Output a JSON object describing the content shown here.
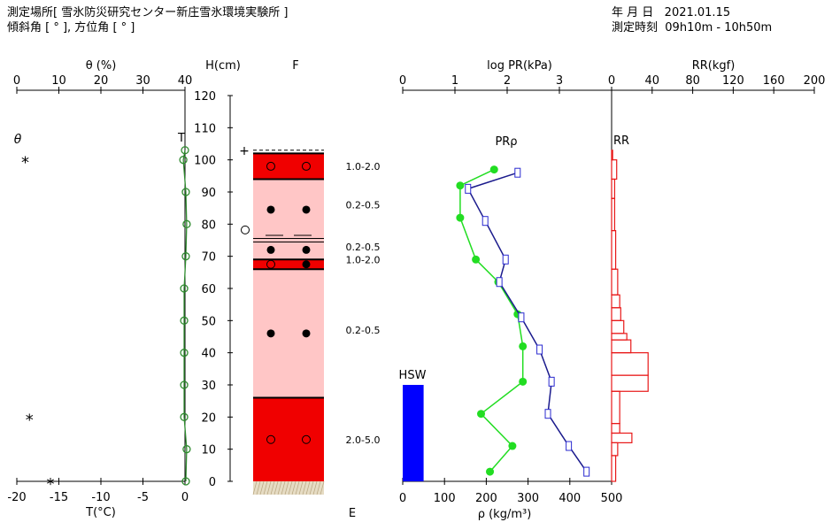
{
  "header": {
    "location_label": "測定場所",
    "location_value": "[ 雪氷防災研究センター新庄雪氷環境実験所 ]",
    "angle_line": "傾斜角 [ ° ], 方位角 [ ° ]",
    "date_label": "年 月 日",
    "date_value": "2021.01.15",
    "time_label": "測定時刻",
    "time_value": "09h10m - 10h50m"
  },
  "chart_data": [
    {
      "type": "line",
      "id": "inclination-temperature",
      "top_axis_label": "θ (%)",
      "top_ticks": [
        0,
        10,
        20,
        30,
        40
      ],
      "top_range": [
        0,
        40
      ],
      "bottom_axis_label": "T(°C)",
      "bottom_ticks": [
        -20,
        -15,
        -10,
        -5,
        0
      ],
      "bottom_range": [
        -20,
        0
      ],
      "theta_label": "θ",
      "theta_marker": "*",
      "theta_points": [
        {
          "h": 100,
          "value": 2.0
        },
        {
          "h": 20,
          "value": 3.0
        },
        {
          "h": 0,
          "value": 8.0
        }
      ],
      "temperature_label": "T",
      "temperature_color": "#2e8b2e",
      "temperature": [
        {
          "h": 103,
          "t": 0.0
        },
        {
          "h": 100,
          "t": -0.2
        },
        {
          "h": 90,
          "t": 0.1
        },
        {
          "h": 80,
          "t": 0.2
        },
        {
          "h": 70,
          "t": 0.1
        },
        {
          "h": 60,
          "t": -0.1
        },
        {
          "h": 50,
          "t": -0.1
        },
        {
          "h": 40,
          "t": -0.1
        },
        {
          "h": 30,
          "t": -0.1
        },
        {
          "h": 20,
          "t": -0.1
        },
        {
          "h": 10,
          "t": 0.2
        },
        {
          "h": 0,
          "t": 0.1
        }
      ]
    },
    {
      "type": "table",
      "id": "snow-profile",
      "height_axis_label": "H(cm)",
      "height_ticks": [
        0,
        10,
        20,
        30,
        40,
        50,
        60,
        70,
        80,
        90,
        100,
        110,
        120
      ],
      "height_range": [
        0,
        120
      ],
      "top_label": "F",
      "bottom_label": "E",
      "surface_marker": "+",
      "surface_height": 103,
      "open_circle_height": 76,
      "layers": [
        {
          "from": 94,
          "to": 102,
          "color": "#f00000",
          "symbol": "open-circle",
          "size": "1.0-2.0"
        },
        {
          "from": 75,
          "to": 94,
          "color": "#ffc6c6",
          "symbol": "filled-dot",
          "size": "0.2-0.5"
        },
        {
          "from": 69,
          "to": 75,
          "color": "#ffc6c6",
          "symbol": "filled-dot",
          "size": "0.2-0.5"
        },
        {
          "from": 66,
          "to": 69,
          "color": "#f00000",
          "symbol": "open-filled",
          "size": "1.0-2.0"
        },
        {
          "from": 26,
          "to": 66,
          "color": "#ffc6c6",
          "symbol": "filled-dot",
          "size": "0.2-0.5"
        },
        {
          "from": 0,
          "to": 26,
          "color": "#f00000",
          "symbol": "open-circle",
          "size": "2.0-5.0"
        }
      ],
      "size_labels": [
        {
          "h": 98,
          "text": "1.0-2.0"
        },
        {
          "h": 86,
          "text": "0.2-0.5"
        },
        {
          "h": 73,
          "text": "0.2-0.5"
        },
        {
          "h": 69,
          "text": "1.0-2.0"
        },
        {
          "h": 47,
          "text": "0.2-0.5"
        },
        {
          "h": 13,
          "text": "2.0-5.0"
        }
      ]
    },
    {
      "type": "line",
      "id": "pr-density",
      "top_axis_label": "log PR(kPa)",
      "top_ticks": [
        0,
        1,
        2,
        3
      ],
      "top_range": [
        0,
        4
      ],
      "bottom_axis_label": "ρ (kg/m³)",
      "bottom_ticks": [
        0,
        100,
        200,
        300,
        400,
        500
      ],
      "bottom_range": [
        0,
        500
      ],
      "curve_label": "PRρ",
      "hsw_label": "HSW",
      "hsw": {
        "from": 0,
        "to": 30,
        "rho_from": 0,
        "rho_to": 50,
        "color": "#0000ff"
      },
      "series": [
        {
          "name": "ρ",
          "color": "#22dd22",
          "points": [
            {
              "h": 97,
              "v": 1.75
            },
            {
              "h": 92,
              "v": 1.1
            },
            {
              "h": 82,
              "v": 1.1
            },
            {
              "h": 69,
              "v": 1.4
            },
            {
              "h": 62,
              "v": 1.83
            },
            {
              "h": 52,
              "v": 2.2
            },
            {
              "h": 42,
              "v": 2.3
            },
            {
              "h": 31,
              "v": 2.3
            },
            {
              "h": 21,
              "v": 1.5
            },
            {
              "h": 11,
              "v": 2.1
            },
            {
              "h": 3,
              "v": 1.67
            }
          ]
        },
        {
          "name": "PR",
          "color": "#1a1a8c",
          "points": [
            {
              "h": 96,
              "v": 2.2
            },
            {
              "h": 91,
              "v": 1.25
            },
            {
              "h": 81,
              "v": 1.58
            },
            {
              "h": 69,
              "v": 1.97
            },
            {
              "h": 62,
              "v": 1.85
            },
            {
              "h": 51,
              "v": 2.27
            },
            {
              "h": 41,
              "v": 2.62
            },
            {
              "h": 31,
              "v": 2.85
            },
            {
              "h": 21,
              "v": 2.78
            },
            {
              "h": 11,
              "v": 3.18
            },
            {
              "h": 3,
              "v": 3.52
            }
          ]
        }
      ]
    },
    {
      "type": "bar",
      "id": "ram-resistance",
      "top_axis_label": "RR(kgf)",
      "top_ticks": [
        0,
        40,
        80,
        120,
        160,
        200
      ],
      "top_range": [
        0,
        200
      ],
      "curve_label": "RR",
      "color": "#e81818",
      "steps": [
        {
          "from": 100,
          "to": 103,
          "value": 1
        },
        {
          "from": 94,
          "to": 100,
          "value": 5
        },
        {
          "from": 88,
          "to": 94,
          "value": 3
        },
        {
          "from": 78,
          "to": 88,
          "value": 3
        },
        {
          "from": 66,
          "to": 78,
          "value": 4
        },
        {
          "from": 58,
          "to": 66,
          "value": 6
        },
        {
          "from": 54,
          "to": 58,
          "value": 8
        },
        {
          "from": 50,
          "to": 54,
          "value": 9
        },
        {
          "from": 46,
          "to": 50,
          "value": 12
        },
        {
          "from": 44,
          "to": 46,
          "value": 15
        },
        {
          "from": 40,
          "to": 44,
          "value": 19
        },
        {
          "from": 33,
          "to": 40,
          "value": 36
        },
        {
          "from": 28,
          "to": 33,
          "value": 36
        },
        {
          "from": 18,
          "to": 28,
          "value": 8
        },
        {
          "from": 15,
          "to": 18,
          "value": 8
        },
        {
          "from": 12,
          "to": 15,
          "value": 20
        },
        {
          "from": 8,
          "to": 12,
          "value": 6
        },
        {
          "from": 0,
          "to": 8,
          "value": 4
        }
      ]
    }
  ]
}
